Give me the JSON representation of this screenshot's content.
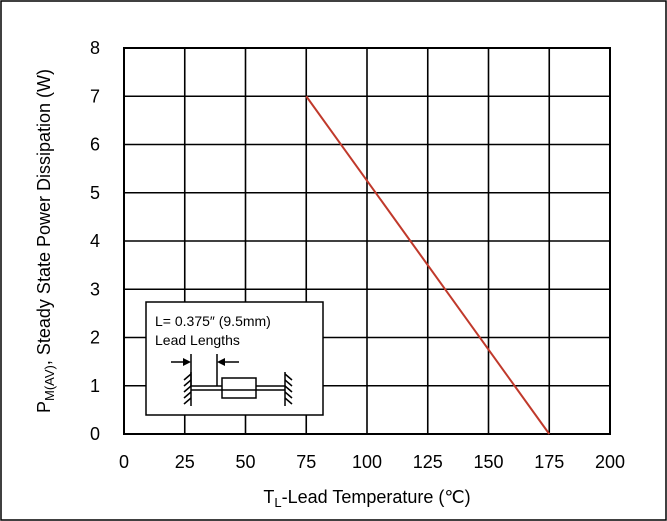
{
  "chart_data": {
    "type": "line",
    "xlabel": {
      "main": "T",
      "sub": "L",
      "rest": "-Lead Temperature (℃)"
    },
    "ylabel": {
      "main": "P",
      "sub": "M(AV)",
      "rest": ", Steady State Power Dissipation (W)"
    },
    "xlim": [
      0,
      200
    ],
    "ylim": [
      0,
      8
    ],
    "x_ticks": [
      0,
      25,
      50,
      75,
      100,
      125,
      150,
      175,
      200
    ],
    "y_ticks": [
      0,
      1,
      2,
      3,
      4,
      5,
      6,
      7,
      8
    ],
    "grid": true,
    "series": [
      {
        "color": "#c0392b",
        "points": [
          {
            "x": 75,
            "y": 7
          },
          {
            "x": 175,
            "y": 0
          }
        ]
      }
    ],
    "inset": {
      "line1": "L= 0.375″ (9.5mm)",
      "line2": "Lead Lengths"
    }
  }
}
